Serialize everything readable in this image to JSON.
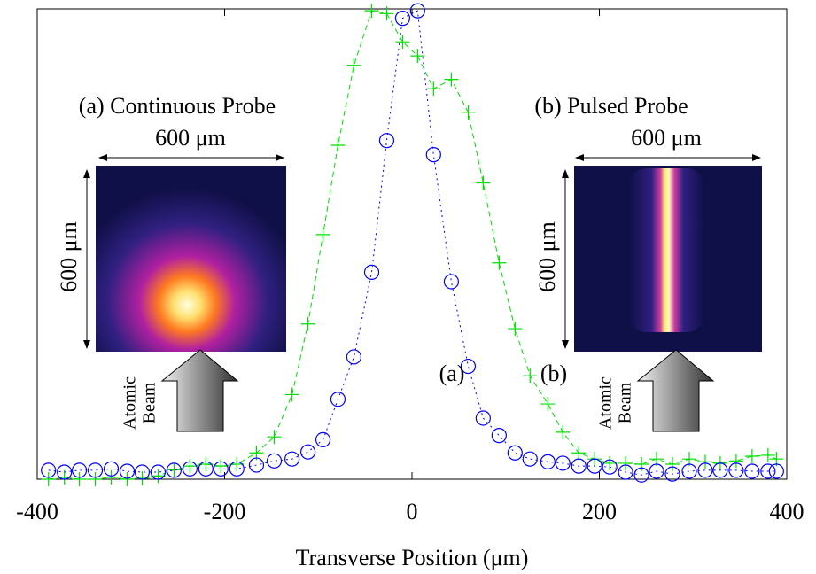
{
  "chart_data": {
    "type": "line",
    "xlabel": "Transverse Position (μm)",
    "x": [
      -388,
      -371,
      -355,
      -338,
      -321,
      -304,
      -288,
      -271,
      -254,
      -237,
      -220,
      -204,
      -187,
      -166,
      -147,
      -128,
      -111,
      -95,
      -79,
      -62,
      -43,
      -27,
      -10,
      6,
      23,
      42,
      60,
      76,
      93,
      110,
      126,
      145,
      161,
      178,
      195,
      211,
      228,
      245,
      261,
      278,
      296,
      313,
      329,
      346,
      363,
      380,
      389
    ],
    "series": [
      {
        "marker": "plus",
        "color": "#00dd00",
        "dash": "6,4",
        "values": [
          0,
          0.004,
          0,
          0,
          0.004,
          0,
          0.002,
          0.007,
          0.02,
          0.028,
          0.032,
          0.028,
          0.032,
          0.056,
          0.09,
          0.18,
          0.33,
          0.52,
          0.71,
          0.88,
          0.996,
          0.99,
          0.93,
          0.9,
          0.83,
          0.85,
          0.78,
          0.63,
          0.46,
          0.32,
          0.22,
          0.16,
          0.1,
          0.056,
          0.043,
          0.034,
          0.034,
          0.032,
          0.043,
          0.032,
          0.043,
          0.037,
          0.034,
          0.039,
          0.049,
          0.051,
          0.043
        ]
      },
      {
        "marker": "circle",
        "color": "#0000ff",
        "dash": "2,4",
        "values": [
          0.019,
          0.015,
          0.019,
          0.019,
          0.022,
          0.017,
          0.015,
          0.015,
          0.019,
          0.022,
          0.022,
          0.022,
          0.022,
          0.03,
          0.039,
          0.043,
          0.058,
          0.084,
          0.17,
          0.26,
          0.44,
          0.72,
          0.98,
          0.996,
          0.69,
          0.42,
          0.24,
          0.13,
          0.093,
          0.056,
          0.043,
          0.037,
          0.034,
          0.028,
          0.028,
          0.026,
          0.015,
          0.009,
          0.017,
          0.011,
          0.017,
          0.019,
          0.019,
          0.019,
          0.017,
          0.017,
          0.017
        ]
      }
    ],
    "xlim": [
      -400,
      400
    ],
    "xticks": [
      -400,
      -200,
      0,
      200,
      400
    ],
    "ylim": [
      0,
      1
    ],
    "annotations": [
      "(a) Continuous Probe",
      "600 μm",
      "600 μm",
      "(b) Pulsed Probe",
      "600 μm",
      "600 μm",
      "Atomic",
      "Beam",
      "Atomic",
      "Beam",
      "(a)",
      "(b)"
    ]
  }
}
